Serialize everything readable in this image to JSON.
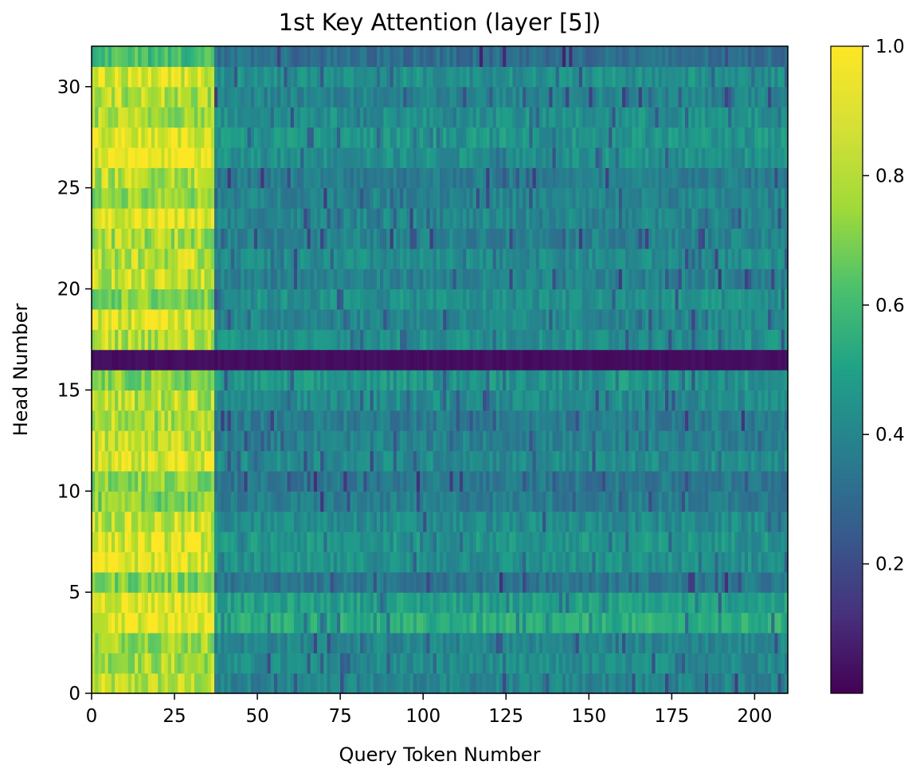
{
  "chart_data": {
    "type": "heatmap",
    "title": "1st Key Attention (layer [5])",
    "xlabel": "Query Token Number",
    "ylabel": "Head Number",
    "xlim": [
      0,
      210
    ],
    "ylim": [
      0,
      32
    ],
    "xticks": [
      0,
      25,
      50,
      75,
      100,
      125,
      150,
      175,
      200
    ],
    "yticks": [
      0,
      5,
      10,
      15,
      20,
      25,
      30
    ],
    "n_heads": 32,
    "n_tokens": 210,
    "colormap": "viridis",
    "colorbar": {
      "range": [
        0.0,
        1.0
      ],
      "ticks": [
        "0.2",
        "0.4",
        "0.6",
        "0.8",
        "1.0"
      ]
    },
    "approx_row_means": {
      "description_heads": "index = head number 0..31",
      "early_tokens_0_36": [
        0.88,
        0.86,
        0.85,
        0.98,
        0.97,
        0.8,
        0.96,
        0.95,
        0.9,
        0.8,
        0.82,
        0.95,
        0.9,
        0.86,
        0.88,
        0.8,
        0.03,
        0.88,
        0.95,
        0.8,
        0.9,
        0.88,
        0.86,
        0.96,
        0.82,
        0.88,
        0.98,
        0.98,
        0.86,
        0.88,
        0.95,
        0.7
      ],
      "later_tokens_37_209": [
        0.45,
        0.48,
        0.46,
        0.62,
        0.56,
        0.4,
        0.5,
        0.52,
        0.48,
        0.42,
        0.4,
        0.48,
        0.44,
        0.42,
        0.48,
        0.52,
        0.03,
        0.5,
        0.46,
        0.5,
        0.44,
        0.48,
        0.44,
        0.46,
        0.45,
        0.42,
        0.5,
        0.52,
        0.5,
        0.45,
        0.5,
        0.36
      ]
    }
  }
}
